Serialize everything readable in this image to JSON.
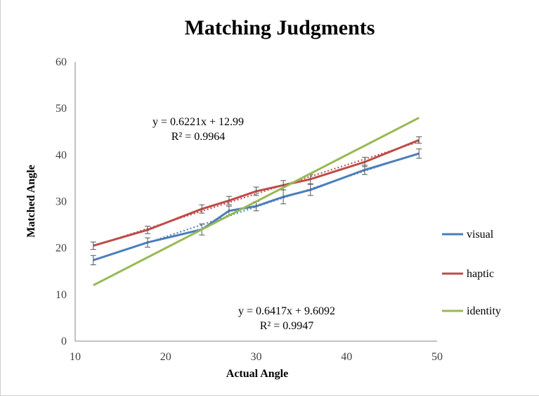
{
  "chart_data": {
    "type": "line",
    "title": "Matching Judgments",
    "xlabel": "Actual Angle",
    "ylabel": "Matched Angle",
    "xlim": [
      10,
      50
    ],
    "ylim": [
      0,
      60
    ],
    "xticks": [
      10,
      20,
      30,
      40,
      50
    ],
    "yticks": [
      0,
      10,
      20,
      30,
      40,
      50,
      60
    ],
    "grid": false,
    "legend_position": "right",
    "series": [
      {
        "name": "visual",
        "color": "#4a7ebb",
        "x": [
          12,
          18,
          24,
          27,
          30,
          33,
          36,
          42,
          48
        ],
        "values": [
          17.4,
          21.2,
          24.0,
          28.0,
          29.0,
          31.0,
          32.5,
          36.8,
          40.3
        ],
        "error": [
          1.0,
          1.0,
          1.2,
          1.0,
          1.0,
          1.5,
          1.2,
          1.0,
          1.0
        ],
        "trendline": {
          "slope": 0.6417,
          "intercept": 9.6092,
          "equation": "y = 0.6417x + 9.6092",
          "r2": "R² = 0.9947"
        }
      },
      {
        "name": "haptic",
        "color": "#be4b48",
        "x": [
          12,
          18,
          24,
          27,
          30,
          33,
          36,
          42,
          48
        ],
        "values": [
          20.5,
          23.9,
          28.4,
          30.2,
          32.2,
          33.5,
          34.8,
          38.5,
          43.2
        ],
        "error": [
          0.8,
          0.8,
          0.9,
          0.9,
          0.9,
          1.0,
          1.0,
          1.0,
          0.7
        ],
        "trendline": {
          "slope": 0.6221,
          "intercept": 12.99,
          "equation": "y = 0.6221x + 12.99",
          "r2": "R² = 0.9964"
        }
      },
      {
        "name": "identity",
        "color": "#98b954",
        "x": [
          12,
          48
        ],
        "values": [
          12,
          48
        ]
      }
    ]
  }
}
